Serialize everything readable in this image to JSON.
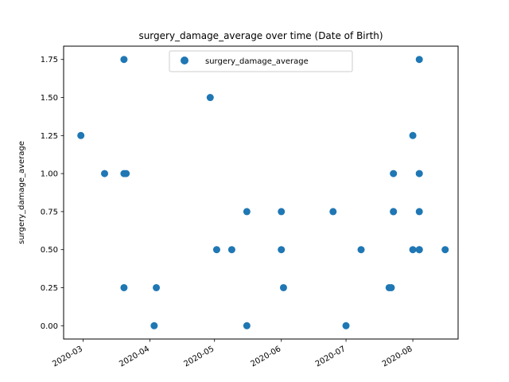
{
  "chart_data": {
    "type": "scatter",
    "title": "surgery_damage_average over time (Date of Birth)",
    "xlabel": "",
    "ylabel": "surgery_damage_average",
    "x_tick_labels": [
      "2020-03",
      "2020-04",
      "2020-05",
      "2020-06",
      "2020-07",
      "2020-08"
    ],
    "y_tick_labels": [
      "0.00",
      "0.25",
      "0.50",
      "0.75",
      "1.00",
      "1.25",
      "1.50",
      "1.75"
    ],
    "ylim": [
      -0.0875,
      1.8375
    ],
    "xlim": [
      "2020-02-21",
      "2020-08-22"
    ],
    "legend_position": "upper center",
    "grid": false,
    "color": "#1f77b4",
    "series": [
      {
        "name": "surgery_damage_average",
        "points": [
          {
            "x": "2020-02-29",
            "y": 1.25
          },
          {
            "x": "2020-03-11",
            "y": 1.0
          },
          {
            "x": "2020-03-20",
            "y": 1.75
          },
          {
            "x": "2020-03-20",
            "y": 1.0
          },
          {
            "x": "2020-03-21",
            "y": 1.0
          },
          {
            "x": "2020-03-20",
            "y": 0.25
          },
          {
            "x": "2020-04-03",
            "y": 0.0
          },
          {
            "x": "2020-04-04",
            "y": 0.25
          },
          {
            "x": "2020-04-29",
            "y": 1.5
          },
          {
            "x": "2020-05-02",
            "y": 0.5
          },
          {
            "x": "2020-05-09",
            "y": 0.5
          },
          {
            "x": "2020-05-16",
            "y": 0.75
          },
          {
            "x": "2020-05-16",
            "y": 0.0
          },
          {
            "x": "2020-06-01",
            "y": 0.75
          },
          {
            "x": "2020-06-01",
            "y": 0.5
          },
          {
            "x": "2020-06-02",
            "y": 0.25
          },
          {
            "x": "2020-06-25",
            "y": 0.75
          },
          {
            "x": "2020-07-01",
            "y": 0.0
          },
          {
            "x": "2020-07-08",
            "y": 0.5
          },
          {
            "x": "2020-07-21",
            "y": 0.25
          },
          {
            "x": "2020-07-22",
            "y": 0.25
          },
          {
            "x": "2020-07-23",
            "y": 1.0
          },
          {
            "x": "2020-07-23",
            "y": 0.75
          },
          {
            "x": "2020-07-23",
            "y": 0.75
          },
          {
            "x": "2020-08-01",
            "y": 1.25
          },
          {
            "x": "2020-08-01",
            "y": 0.5
          },
          {
            "x": "2020-08-04",
            "y": 1.75
          },
          {
            "x": "2020-08-04",
            "y": 1.0
          },
          {
            "x": "2020-08-04",
            "y": 0.75
          },
          {
            "x": "2020-08-04",
            "y": 0.5
          },
          {
            "x": "2020-08-04",
            "y": 0.5
          },
          {
            "x": "2020-08-16",
            "y": 0.5
          }
        ]
      }
    ]
  }
}
